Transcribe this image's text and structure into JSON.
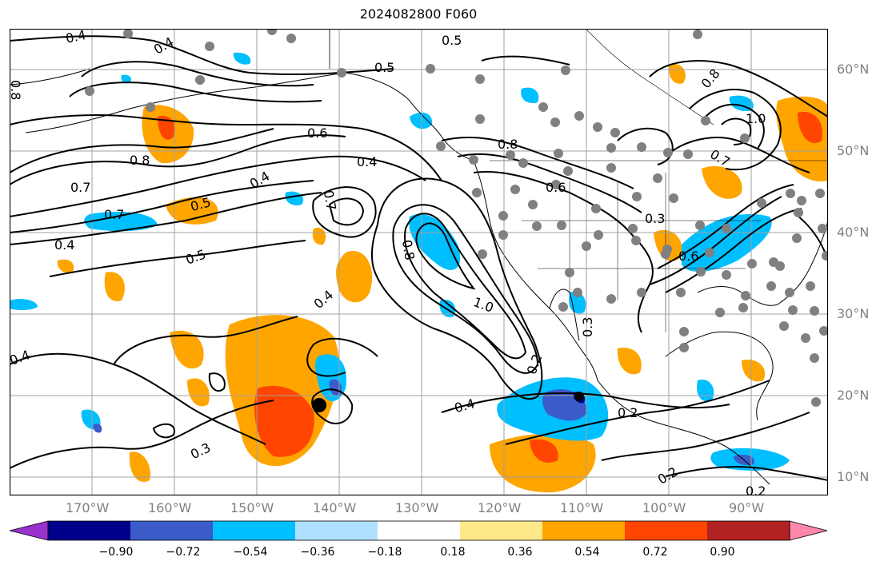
{
  "title": "2024082800 F060",
  "lat_labels": [
    "60°N",
    "50°N",
    "40°N",
    "30°N",
    "20°N",
    "10°N"
  ],
  "lon_labels": [
    "170°W",
    "160°W",
    "150°W",
    "140°W",
    "130°W",
    "120°W",
    "110°W",
    "100°W",
    "90°W"
  ],
  "colorbar": {
    "ticks": [
      "−0.90",
      "−0.72",
      "−0.54",
      "−0.36",
      "−0.18",
      "0.18",
      "0.36",
      "0.54",
      "0.72",
      "0.90"
    ],
    "colors": [
      "#9932cc",
      "#00008b",
      "#3a5bc8",
      "#00bfff",
      "#b0e0ff",
      "#ffffff",
      "#ffe88a",
      "#ffa500",
      "#ff4500",
      "#b22222",
      "#ff88aa"
    ]
  },
  "contour_labels": [
    "0.4",
    "0.5",
    "0.4",
    "0.5",
    "0.8",
    "0.6",
    "0.8",
    "0.7",
    "0.4",
    "0.5",
    "0.7",
    "0.4",
    "0.5",
    "0.4",
    "0.7",
    "0.8",
    "1.0",
    "0.8",
    "0.6",
    "0.3",
    "1.0",
    "0.6",
    "0.4",
    "0.4",
    "0.3",
    "0.3",
    "0.2",
    "0.2",
    "0.2",
    "0.4",
    "0.7",
    "0.8",
    "0.2"
  ],
  "colors": {
    "contour": "#000000",
    "grid": "#a0a0a0",
    "coast": "#000000",
    "station": "#808080",
    "storm_center": "#000000"
  }
}
